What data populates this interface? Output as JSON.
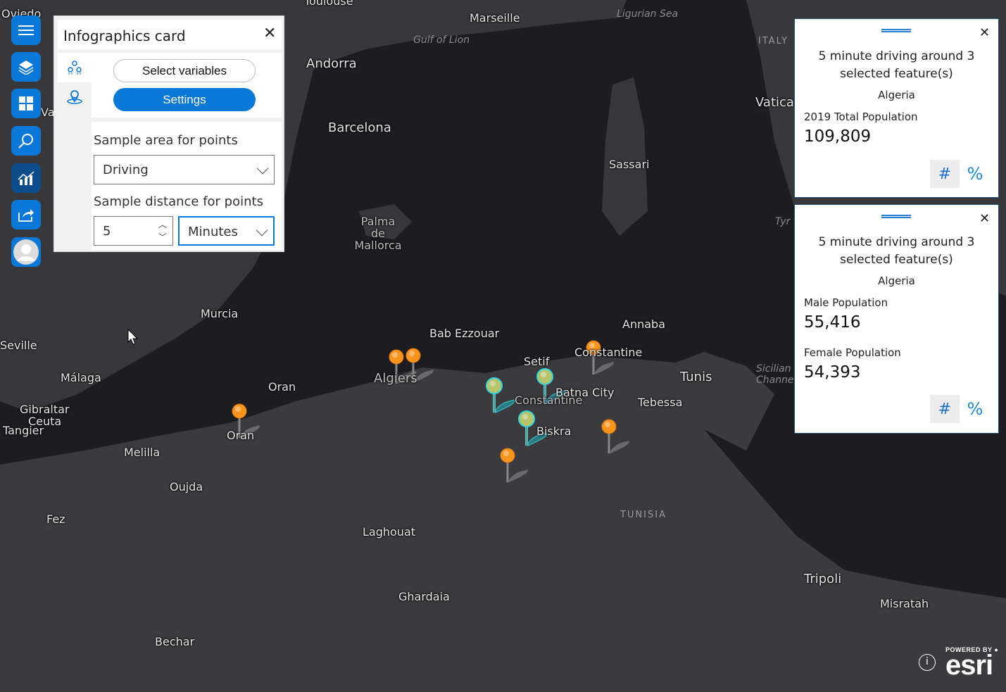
{
  "panel": {
    "title": "Infographics card",
    "select_variables": "Select variables",
    "settings": "Settings",
    "sample_area_label": "Sample area for points",
    "sample_area_value": "Driving",
    "sample_distance_label": "Sample distance for points",
    "sample_distance_value": "5",
    "sample_distance_unit": "Minutes"
  },
  "toolbar": [
    "menu-icon",
    "layers-icon",
    "basemap-gallery-icon",
    "search-icon",
    "infographics-icon",
    "share-icon",
    "user-avatar"
  ],
  "cards": [
    {
      "title": "5 minute driving around 3 selected feature(s)",
      "country": "Algeria",
      "variables": [
        {
          "label": "2019 Total Population",
          "value": "109,809"
        }
      ],
      "hash": "#",
      "percent": "%"
    },
    {
      "title": "5 minute driving around 3 selected feature(s)",
      "country": "Algeria",
      "variables": [
        {
          "label": "Male Population",
          "value": "55,416"
        },
        {
          "label": "Female Population",
          "value": "54,393"
        }
      ],
      "hash": "#",
      "percent": "%"
    }
  ],
  "map": {
    "labels": [
      "Oviedo",
      "Toulouse",
      "Marseille",
      "Ligurian Sea",
      "Gulf of Lion",
      "ITALY",
      "Andorra",
      "Barcelona",
      "Vatica",
      "Sassari",
      "Palma de Mallorca",
      "Tyr",
      "Murcia",
      "Seville",
      "Málaga",
      "Bab Ezzouar",
      "Annaba",
      "Constantine",
      "Setif",
      "Tunis",
      "Algiers",
      "Oran",
      "Batna City",
      "Constantine",
      "Tebessa",
      "Sicilian Channel",
      "Gibraltar",
      "Ceuta",
      "Tangier",
      "Oran",
      "Biskra",
      "Melilla",
      "Oujda",
      "TUNISIA",
      "Fez",
      "Laghouat",
      "Tripoli",
      "Misratah",
      "Ghardaia",
      "Bechar",
      "Va"
    ],
    "attribution": "POWERED BY esri",
    "colors": {
      "sea": "#1d1d21",
      "land": "#3b3b3e",
      "pin": "#f7941d",
      "selected": "#2fd6e0"
    }
  }
}
